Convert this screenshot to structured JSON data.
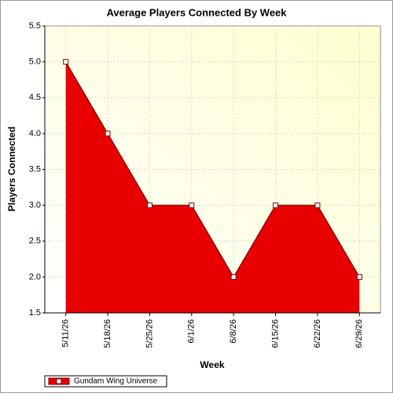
{
  "chart_data": {
    "type": "area",
    "title": "Average Players Connected By Week",
    "x_label": "Week",
    "y_label": "Players Connected",
    "categories": [
      "5/11/26",
      "5/18/26",
      "5/25/26",
      "6/1/26",
      "6/8/26",
      "6/15/26",
      "6/22/26",
      "6/29/26"
    ],
    "series": [
      {
        "name": "Gundam Wing Universe",
        "color": "#e80000",
        "line_color": "#7a0000",
        "values": [
          5,
          4,
          3,
          3,
          2,
          3,
          3,
          2
        ]
      }
    ],
    "ylim": [
      1.5,
      5.5
    ],
    "yticks": [
      1.5,
      {
        "value": 2,
        "label": "2.0"
      },
      2.5,
      {
        "value": 3,
        "label": "3.0"
      },
      3.5,
      {
        "value": 4,
        "label": "4.0"
      },
      4.5,
      {
        "value": 5,
        "label": "5.0"
      },
      5.5
    ],
    "grid": true,
    "legend": "bottom-left"
  }
}
